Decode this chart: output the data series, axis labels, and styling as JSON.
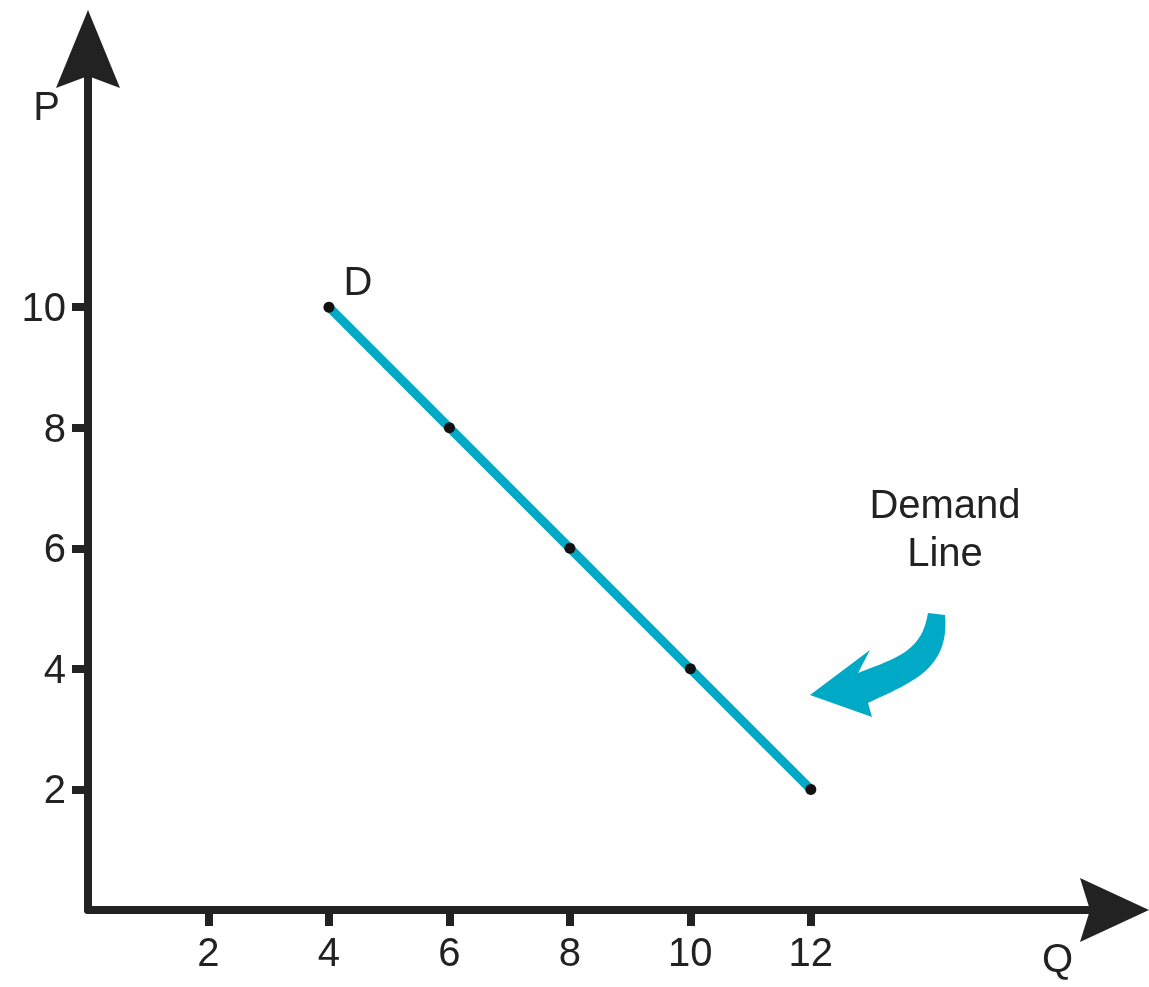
{
  "chart_data": {
    "type": "line",
    "xlabel": "Q",
    "ylabel": "P",
    "x": [
      4,
      6,
      8,
      10,
      12
    ],
    "series": [
      {
        "name": "D",
        "color": "#00a9c5",
        "values": [
          10,
          8,
          6,
          4,
          2
        ]
      }
    ],
    "xlim": [
      0,
      17
    ],
    "xticks": [
      2,
      4,
      6,
      8,
      10,
      12
    ],
    "ylim": [
      0,
      14
    ],
    "yticks": [
      2,
      4,
      6,
      8,
      10
    ],
    "annotations": [
      "Demand\nLine"
    ],
    "grid": false,
    "legend": false,
    "marker": "circle",
    "line_style": "solid"
  }
}
